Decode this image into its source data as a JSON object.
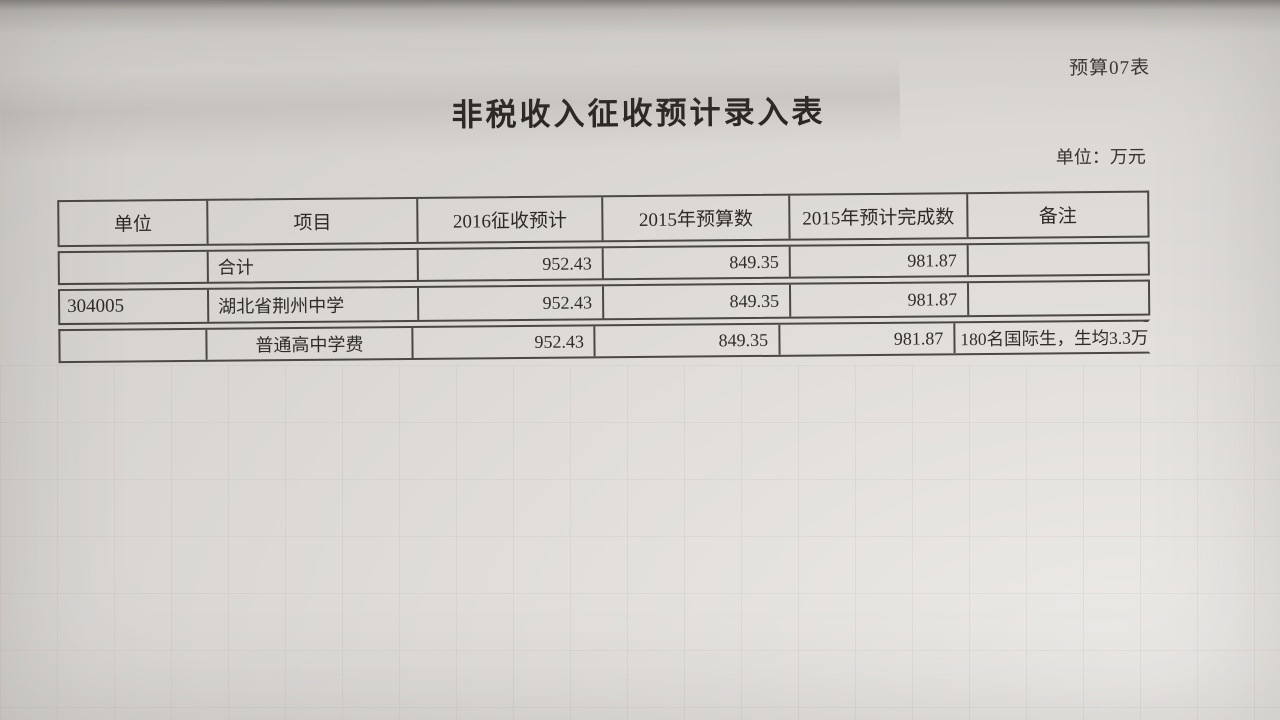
{
  "page": {
    "corner_label": "预算07表",
    "title": "非税收入征收预计录入表",
    "unit_label": "单位：万元"
  },
  "table": {
    "headers": [
      "单位",
      "项目",
      "2016征收预计",
      "2015年预算数",
      "2015年预计完成数",
      "备注"
    ],
    "rows": [
      {
        "unit": "",
        "item": "合计",
        "y2016": "952.43",
        "y2015_budget": "849.35",
        "y2015_expected": "981.87",
        "remark": ""
      },
      {
        "unit": "304005",
        "item": "湖北省荆州中学",
        "y2016": "952.43",
        "y2015_budget": "849.35",
        "y2015_expected": "981.87",
        "remark": ""
      },
      {
        "unit": "",
        "item": "普通高中学费",
        "y2016": "952.43",
        "y2015_budget": "849.35",
        "y2015_expected": "981.87",
        "remark": "180名国际生，生均3.3万"
      }
    ]
  },
  "colors": {
    "paper": "#ddd9d6",
    "ink": "#2f2c2a",
    "table_border": "#4b4744"
  }
}
